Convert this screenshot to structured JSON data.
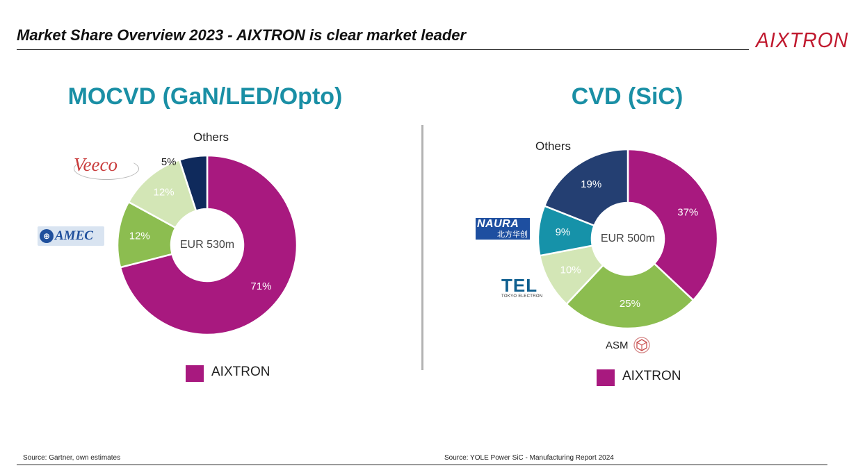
{
  "header": {
    "title": "Market Share Overview 2023 - AIXTRON is clear market leader",
    "brand": "AIXTRON"
  },
  "colors": {
    "aixtron": "#a8197f",
    "light_green": "#8cbd50",
    "pale_green": "#d3e6b6",
    "navy": "#0f2a5c",
    "teal": "#1692a9",
    "slate_blue": "#243f72",
    "title_teal": "#1a8fa5"
  },
  "logos": {
    "veeco": "Veeco",
    "amec": "AMEC",
    "naura_top": "NAURA",
    "naura_bottom": "北方华创",
    "tel_main": "TEL",
    "tel_sub": "TOKYO ELECTRON",
    "asm": "ASM"
  },
  "chart_data": [
    {
      "type": "pie",
      "title": "MOCVD (GaN/LED/Opto)",
      "center_label": "EUR 530m",
      "slices": [
        {
          "name": "AIXTRON",
          "value": 71,
          "label": "71%",
          "color": "#a8197f",
          "text_color": "#ffffff"
        },
        {
          "name": "AMEC",
          "value": 12,
          "label": "12%",
          "color": "#8cbd50",
          "text_color": "#ffffff"
        },
        {
          "name": "Veeco",
          "value": 12,
          "label": "12%",
          "color": "#d3e6b6",
          "text_color": "#ffffff"
        },
        {
          "name": "Others",
          "value": 5,
          "label": "5%",
          "color": "#0f2a5c",
          "text_color": "#1a1a1a"
        }
      ],
      "others_label": "Others",
      "legend": "AIXTRON",
      "source": "Source: Gartner, own estimates"
    },
    {
      "type": "pie",
      "title": "CVD (SiC)",
      "center_label": "EUR 500m",
      "slices": [
        {
          "name": "AIXTRON",
          "value": 37,
          "label": "37%",
          "color": "#a8197f",
          "text_color": "#ffffff"
        },
        {
          "name": "ASM",
          "value": 25,
          "label": "25%",
          "color": "#8cbd50",
          "text_color": "#ffffff"
        },
        {
          "name": "TEL",
          "value": 10,
          "label": "10%",
          "color": "#d3e6b6",
          "text_color": "#ffffff"
        },
        {
          "name": "NAURA",
          "value": 9,
          "label": "9%",
          "color": "#1692a9",
          "text_color": "#ffffff"
        },
        {
          "name": "Others",
          "value": 19,
          "label": "19%",
          "color": "#243f72",
          "text_color": "#ffffff"
        }
      ],
      "others_label": "Others",
      "legend": "AIXTRON",
      "source": "Source: YOLE Power SiC - Manufacturing Report 2024"
    }
  ]
}
